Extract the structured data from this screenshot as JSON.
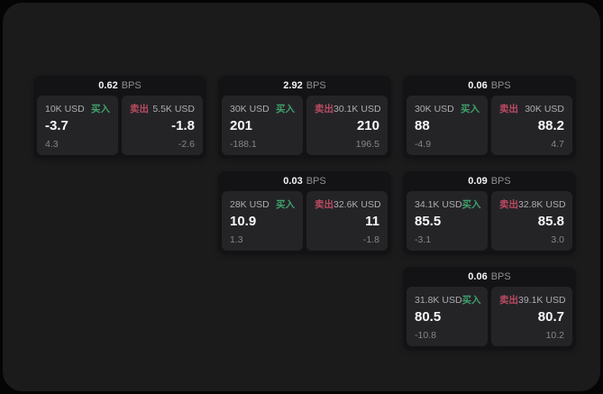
{
  "theme": {
    "page_bg": "#050505",
    "window_bg": "#1b1b1c",
    "card_bg": "#131315",
    "panel_bg": "#242427",
    "buy_color": "#41a06a",
    "sell_color": "#bb4a61",
    "value_color": "#f7f7f8",
    "muted_color": "#86868a"
  },
  "labels": {
    "buy": "买入",
    "sell": "卖出",
    "bps_unit": "BPS"
  },
  "cards": [
    {
      "bps": "0.62",
      "buy": {
        "amount": "10K USD",
        "value": "-3.7",
        "secondary": "4.3"
      },
      "sell": {
        "amount": "5.5K USD",
        "value": "-1.8",
        "secondary": "-2.6"
      }
    },
    {
      "bps": "2.92",
      "buy": {
        "amount": "30K USD",
        "value": "201",
        "secondary": "-188.1"
      },
      "sell": {
        "amount": "30.1K USD",
        "value": "210",
        "secondary": "196.5"
      }
    },
    {
      "bps": "0.06",
      "buy": {
        "amount": "30K USD",
        "value": "88",
        "secondary": "-4.9"
      },
      "sell": {
        "amount": "30K USD",
        "value": "88.2",
        "secondary": "4.7"
      }
    },
    {
      "bps": "0.03",
      "buy": {
        "amount": "28K USD",
        "value": "10.9",
        "secondary": "1.3"
      },
      "sell": {
        "amount": "32.6K USD",
        "value": "11",
        "secondary": "-1.8"
      }
    },
    {
      "bps": "0.09",
      "buy": {
        "amount": "34.1K USD",
        "value": "85.5",
        "secondary": "-3.1"
      },
      "sell": {
        "amount": "32.8K USD",
        "value": "85.8",
        "secondary": "3.0"
      }
    },
    {
      "bps": "0.06",
      "buy": {
        "amount": "31.8K USD",
        "value": "80.5",
        "secondary": "-10.8"
      },
      "sell": {
        "amount": "39.1K USD",
        "value": "80.7",
        "secondary": "10.2"
      }
    }
  ]
}
